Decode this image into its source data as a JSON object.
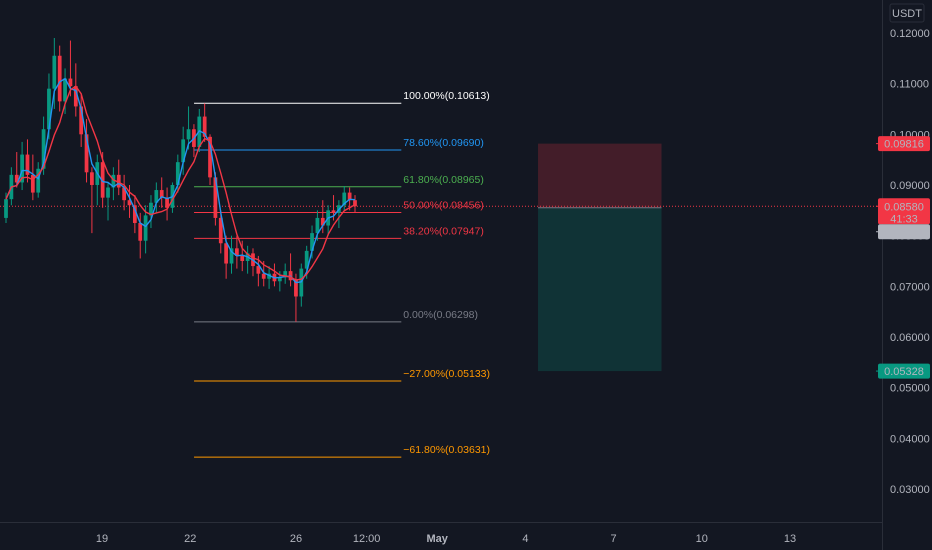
{
  "chart_data": {
    "type": "candlestick",
    "symbol_quote": "USDT",
    "price_axis": {
      "ticks": [
        "0.12000",
        "0.11000",
        "0.10000",
        "0.09000",
        "0.08000",
        "0.07000",
        "0.06000",
        "0.05000",
        "0.04000",
        "0.03000"
      ],
      "tick_values": [
        0.12,
        0.11,
        0.1,
        0.09,
        0.08,
        0.07,
        0.06,
        0.05,
        0.04,
        0.03
      ],
      "range": [
        0.0235,
        0.1265
      ]
    },
    "time_axis": {
      "labels": [
        "19",
        "22",
        "26",
        "12:00",
        "May",
        "4",
        "7",
        "10",
        "13"
      ],
      "label_positions": [
        0.11,
        0.21,
        0.33,
        0.41,
        0.49,
        0.59,
        0.69,
        0.79,
        0.89
      ],
      "emphasized": [
        "May"
      ]
    },
    "price_labels": [
      {
        "label": "0.09816",
        "value": 0.09816,
        "color": "#f23645",
        "role": "stop-loss"
      },
      {
        "label": "0.08580",
        "value": 0.0858,
        "color": "#f23645",
        "role": "last-price",
        "countdown": "41:33"
      },
      {
        "label": "0.08551",
        "value": 0.08551,
        "color": "#b2b5be",
        "role": "entry"
      },
      {
        "label": "0.05328",
        "value": 0.05328,
        "color": "#089981",
        "role": "take-profit"
      }
    ],
    "current_price": 0.0858,
    "fibonacci": {
      "start_index": 0.22,
      "end_index": 0.455,
      "levels": [
        {
          "label": "100.00%(0.10613)",
          "value": 0.10613,
          "color": "#ffffff"
        },
        {
          "label": "78.60%(0.09690)",
          "value": 0.0969,
          "color": "#2196f3"
        },
        {
          "label": "61.80%(0.08965)",
          "value": 0.08965,
          "color": "#4caf50"
        },
        {
          "label": "50.00%(0.08456)",
          "value": 0.08456,
          "color": "#f23645"
        },
        {
          "label": "38.20%(0.07947)",
          "value": 0.07947,
          "color": "#f23645"
        },
        {
          "label": "0.00%(0.06298)",
          "value": 0.06298,
          "color": "#787b86"
        },
        {
          "label": "−27.00%(0.05133)",
          "value": 0.05133,
          "color": "#ff9800"
        },
        {
          "label": "−61.80%(0.03631)",
          "value": 0.03631,
          "color": "#ff9800"
        }
      ]
    },
    "position": {
      "type": "short",
      "entry": 0.08551,
      "stop": 0.09816,
      "target": 0.05328,
      "start_index": 0.61,
      "end_index": 0.75
    },
    "candles": [
      [
        0.0835,
        0.0885,
        0.0825,
        0.0872
      ],
      [
        0.0872,
        0.0935,
        0.086,
        0.092
      ],
      [
        0.092,
        0.0965,
        0.0895,
        0.0905
      ],
      [
        0.0905,
        0.0985,
        0.089,
        0.096
      ],
      [
        0.096,
        0.099,
        0.0905,
        0.092
      ],
      [
        0.092,
        0.096,
        0.087,
        0.0885
      ],
      [
        0.0885,
        0.0945,
        0.0875,
        0.0932
      ],
      [
        0.0932,
        0.1035,
        0.092,
        0.101
      ],
      [
        0.101,
        0.112,
        0.099,
        0.109
      ],
      [
        0.109,
        0.119,
        0.105,
        0.1155
      ],
      [
        0.1155,
        0.1175,
        0.1045,
        0.1065
      ],
      [
        0.1065,
        0.113,
        0.104,
        0.111
      ],
      [
        0.111,
        0.1185,
        0.1075,
        0.1095
      ],
      [
        0.1095,
        0.114,
        0.1035,
        0.1055
      ],
      [
        0.1055,
        0.108,
        0.0975,
        0.1
      ],
      [
        0.1,
        0.103,
        0.0905,
        0.0925
      ],
      [
        0.0925,
        0.0935,
        0.0805,
        0.09
      ],
      [
        0.09,
        0.096,
        0.086,
        0.0945
      ],
      [
        0.0945,
        0.0965,
        0.0855,
        0.0875
      ],
      [
        0.0875,
        0.0905,
        0.083,
        0.0895
      ],
      [
        0.0895,
        0.0935,
        0.087,
        0.092
      ],
      [
        0.092,
        0.095,
        0.088,
        0.0895
      ],
      [
        0.0895,
        0.092,
        0.085,
        0.087
      ],
      [
        0.087,
        0.09,
        0.0835,
        0.086
      ],
      [
        0.086,
        0.088,
        0.0805,
        0.0825
      ],
      [
        0.0825,
        0.0845,
        0.0755,
        0.079
      ],
      [
        0.079,
        0.086,
        0.0765,
        0.084
      ],
      [
        0.084,
        0.088,
        0.0815,
        0.0865
      ],
      [
        0.0865,
        0.0905,
        0.0845,
        0.089
      ],
      [
        0.089,
        0.0915,
        0.0855,
        0.0875
      ],
      [
        0.0875,
        0.0895,
        0.083,
        0.0855
      ],
      [
        0.0855,
        0.0905,
        0.0845,
        0.09
      ],
      [
        0.09,
        0.096,
        0.0885,
        0.0945
      ],
      [
        0.0945,
        0.1015,
        0.092,
        0.099
      ],
      [
        0.099,
        0.1055,
        0.097,
        0.101
      ],
      [
        0.101,
        0.102,
        0.0955,
        0.0975
      ],
      [
        0.0975,
        0.105,
        0.0965,
        0.1035
      ],
      [
        0.1035,
        0.1061,
        0.0985,
        0.0995
      ],
      [
        0.0995,
        0.1,
        0.09,
        0.0915
      ],
      [
        0.0915,
        0.0925,
        0.082,
        0.0835
      ],
      [
        0.0835,
        0.085,
        0.0765,
        0.0785
      ],
      [
        0.0785,
        0.08,
        0.0715,
        0.0745
      ],
      [
        0.0745,
        0.08,
        0.0725,
        0.0775
      ],
      [
        0.0775,
        0.08,
        0.0735,
        0.076
      ],
      [
        0.076,
        0.079,
        0.073,
        0.075
      ],
      [
        0.075,
        0.078,
        0.0725,
        0.0765
      ],
      [
        0.0765,
        0.0775,
        0.072,
        0.074
      ],
      [
        0.074,
        0.076,
        0.07,
        0.0725
      ],
      [
        0.0725,
        0.075,
        0.07,
        0.0715
      ],
      [
        0.0715,
        0.074,
        0.0695,
        0.0725
      ],
      [
        0.0725,
        0.0745,
        0.07,
        0.071
      ],
      [
        0.071,
        0.073,
        0.069,
        0.0718
      ],
      [
        0.0718,
        0.0745,
        0.0705,
        0.073
      ],
      [
        0.073,
        0.0765,
        0.07,
        0.0712
      ],
      [
        0.0712,
        0.0725,
        0.063,
        0.068
      ],
      [
        0.068,
        0.0745,
        0.066,
        0.0735
      ],
      [
        0.0735,
        0.078,
        0.0715,
        0.077
      ],
      [
        0.077,
        0.082,
        0.0755,
        0.0805
      ],
      [
        0.0805,
        0.085,
        0.079,
        0.0835
      ],
      [
        0.0835,
        0.087,
        0.0805,
        0.082
      ],
      [
        0.082,
        0.086,
        0.08,
        0.085
      ],
      [
        0.085,
        0.088,
        0.083,
        0.0845
      ],
      [
        0.0845,
        0.087,
        0.0815,
        0.086
      ],
      [
        0.086,
        0.0898,
        0.085,
        0.0885
      ],
      [
        0.0885,
        0.0895,
        0.085,
        0.087
      ],
      [
        0.087,
        0.088,
        0.0845,
        0.0858
      ]
    ],
    "moving_averages": [
      {
        "color": "#2196f3"
      },
      {
        "color": "#f23645"
      }
    ],
    "grid": false
  }
}
